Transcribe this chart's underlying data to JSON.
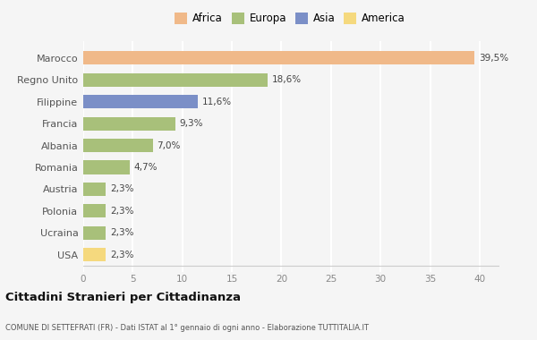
{
  "categories": [
    "USA",
    "Ucraina",
    "Polonia",
    "Austria",
    "Romania",
    "Albania",
    "Francia",
    "Filippine",
    "Regno Unito",
    "Marocco"
  ],
  "values": [
    2.3,
    2.3,
    2.3,
    2.3,
    4.7,
    7.0,
    9.3,
    11.6,
    18.6,
    39.5
  ],
  "labels": [
    "2,3%",
    "2,3%",
    "2,3%",
    "2,3%",
    "4,7%",
    "7,0%",
    "9,3%",
    "11,6%",
    "18,6%",
    "39,5%"
  ],
  "bar_colors": [
    "#f5d97e",
    "#a8c07a",
    "#a8c07a",
    "#a8c07a",
    "#a8c07a",
    "#a8c07a",
    "#a8c07a",
    "#7b8fc7",
    "#a8c07a",
    "#f0b989"
  ],
  "legend_labels": [
    "Africa",
    "Europa",
    "Asia",
    "America"
  ],
  "legend_colors": [
    "#f0b989",
    "#a8c07a",
    "#7b8fc7",
    "#f5d97e"
  ],
  "title": "Cittadini Stranieri per Cittadinanza",
  "subtitle": "COMUNE DI SETTEFRATI (FR) - Dati ISTAT al 1° gennaio di ogni anno - Elaborazione TUTTITALIA.IT",
  "xlim": [
    0,
    42
  ],
  "xticks": [
    0,
    5,
    10,
    15,
    20,
    25,
    30,
    35,
    40
  ],
  "bg_color": "#f5f5f5",
  "grid_color": "#ffffff",
  "bar_height": 0.62
}
